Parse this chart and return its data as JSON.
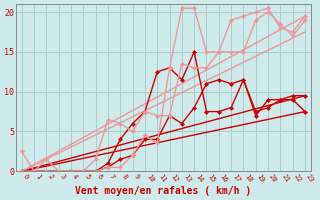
{
  "title": "",
  "xlabel": "Vent moyen/en rafales ( km/h )",
  "ylabel": "",
  "xlim": [
    -0.5,
    23.5
  ],
  "ylim": [
    0,
    21
  ],
  "xticks": [
    0,
    1,
    2,
    3,
    4,
    5,
    6,
    7,
    8,
    9,
    10,
    11,
    12,
    13,
    14,
    15,
    16,
    17,
    18,
    19,
    20,
    21,
    22,
    23
  ],
  "yticks": [
    0,
    5,
    10,
    15,
    20
  ],
  "background_color": "#ceeaea",
  "grid_color": "#aacccc",
  "series": [
    {
      "x": [
        0,
        23
      ],
      "y": [
        0,
        7.5
      ],
      "color": "#cc0000",
      "lw": 1.0,
      "marker": null
    },
    {
      "x": [
        0,
        23
      ],
      "y": [
        0,
        9.5
      ],
      "color": "#cc0000",
      "lw": 1.0,
      "marker": null
    },
    {
      "x": [
        0,
        23
      ],
      "y": [
        0,
        17.5
      ],
      "color": "#ee9999",
      "lw": 1.0,
      "marker": null
    },
    {
      "x": [
        0,
        23
      ],
      "y": [
        0,
        19.5
      ],
      "color": "#ee9999",
      "lw": 1.0,
      "marker": null
    },
    {
      "x": [
        0,
        4,
        5,
        6,
        7,
        8,
        9,
        10,
        11,
        12,
        13,
        14,
        15,
        16,
        17,
        18,
        19,
        20,
        21,
        22,
        23
      ],
      "y": [
        0,
        0,
        0,
        0,
        1,
        4,
        6,
        7.5,
        12.5,
        13,
        11.5,
        15,
        7.5,
        7.5,
        8,
        11.5,
        7.5,
        8,
        9,
        9.5,
        9.5
      ],
      "color": "#cc0000",
      "lw": 1.0,
      "marker": "D",
      "ms": 2.0
    },
    {
      "x": [
        0,
        4,
        5,
        6,
        7,
        8,
        9,
        10,
        11,
        12,
        13,
        14,
        15,
        16,
        17,
        18,
        19,
        20,
        21,
        22,
        23
      ],
      "y": [
        0,
        0,
        0,
        0,
        0.5,
        1.5,
        2,
        4,
        4,
        7,
        6,
        8,
        11,
        11.5,
        11,
        11.5,
        7,
        9,
        9,
        9,
        7.5
      ],
      "color": "#cc0000",
      "lw": 1.0,
      "marker": "D",
      "ms": 2.0
    },
    {
      "x": [
        0,
        1,
        2,
        3,
        4,
        5,
        6,
        7,
        8,
        9,
        10,
        11,
        12,
        13,
        14,
        15,
        16,
        17,
        18,
        19,
        20,
        21,
        22,
        23
      ],
      "y": [
        2.5,
        0,
        1.5,
        0,
        0,
        0,
        0,
        0.5,
        0.5,
        2,
        4.5,
        3.5,
        13,
        20.5,
        20.5,
        15,
        15,
        19,
        19.5,
        20,
        20.5,
        18,
        17.5,
        19.5
      ],
      "color": "#ee9999",
      "lw": 1.0,
      "marker": "D",
      "ms": 2.0
    },
    {
      "x": [
        0,
        1,
        2,
        3,
        4,
        5,
        6,
        7,
        8,
        9,
        10,
        11,
        12,
        13,
        14,
        15,
        16,
        17,
        18,
        19,
        20,
        21,
        22,
        23
      ],
      "y": [
        0,
        0,
        0,
        0,
        0,
        0,
        1.5,
        6.5,
        6,
        5,
        7.5,
        7,
        7,
        13.5,
        13,
        13,
        15,
        15,
        15,
        19,
        20,
        18.5,
        17,
        19
      ],
      "color": "#ee9999",
      "lw": 1.0,
      "marker": "D",
      "ms": 2.0
    }
  ],
  "xlabel_color": "#cc0000",
  "xlabel_fontsize": 7,
  "tick_label_color": "#cc0000",
  "tick_label_fontsize": 5,
  "ytick_label_fontsize": 6
}
